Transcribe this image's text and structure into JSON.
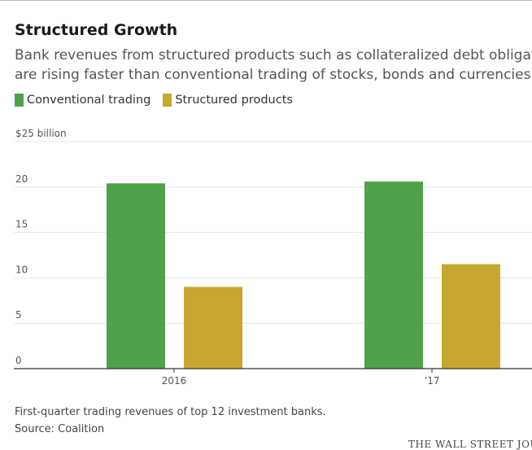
{
  "header": {
    "title": "Structured Growth",
    "subtitle_lines": [
      "Bank revenues from structured products such as collateralized debt obligat",
      "are rising faster than conventional trading of stocks, bonds and currencies."
    ]
  },
  "colors": {
    "conventional": "#4fa24a",
    "structured": "#c6a830",
    "grid": "#e6e6e6",
    "axis": "#333333"
  },
  "chart_data": {
    "type": "bar",
    "ylabel": "$25 billion",
    "ylim": [
      0,
      25
    ],
    "ytick_labels": [
      "$25 billion",
      "20",
      "15",
      "10",
      "5",
      "0"
    ],
    "yticks": [
      25,
      20,
      15,
      10,
      5,
      0
    ],
    "categories": [
      "2016",
      "’17"
    ],
    "series": [
      {
        "name": "Conventional trading",
        "values": [
          20.4,
          20.6
        ]
      },
      {
        "name": "Structured products",
        "values": [
          9.0,
          11.5
        ]
      }
    ],
    "grid": true,
    "legend": "top-left"
  },
  "footer": {
    "note": "First-quarter trading revenues of top 12 investment banks.",
    "source": "Source: Coalition",
    "credit": "THE WALL STREET JOU"
  }
}
